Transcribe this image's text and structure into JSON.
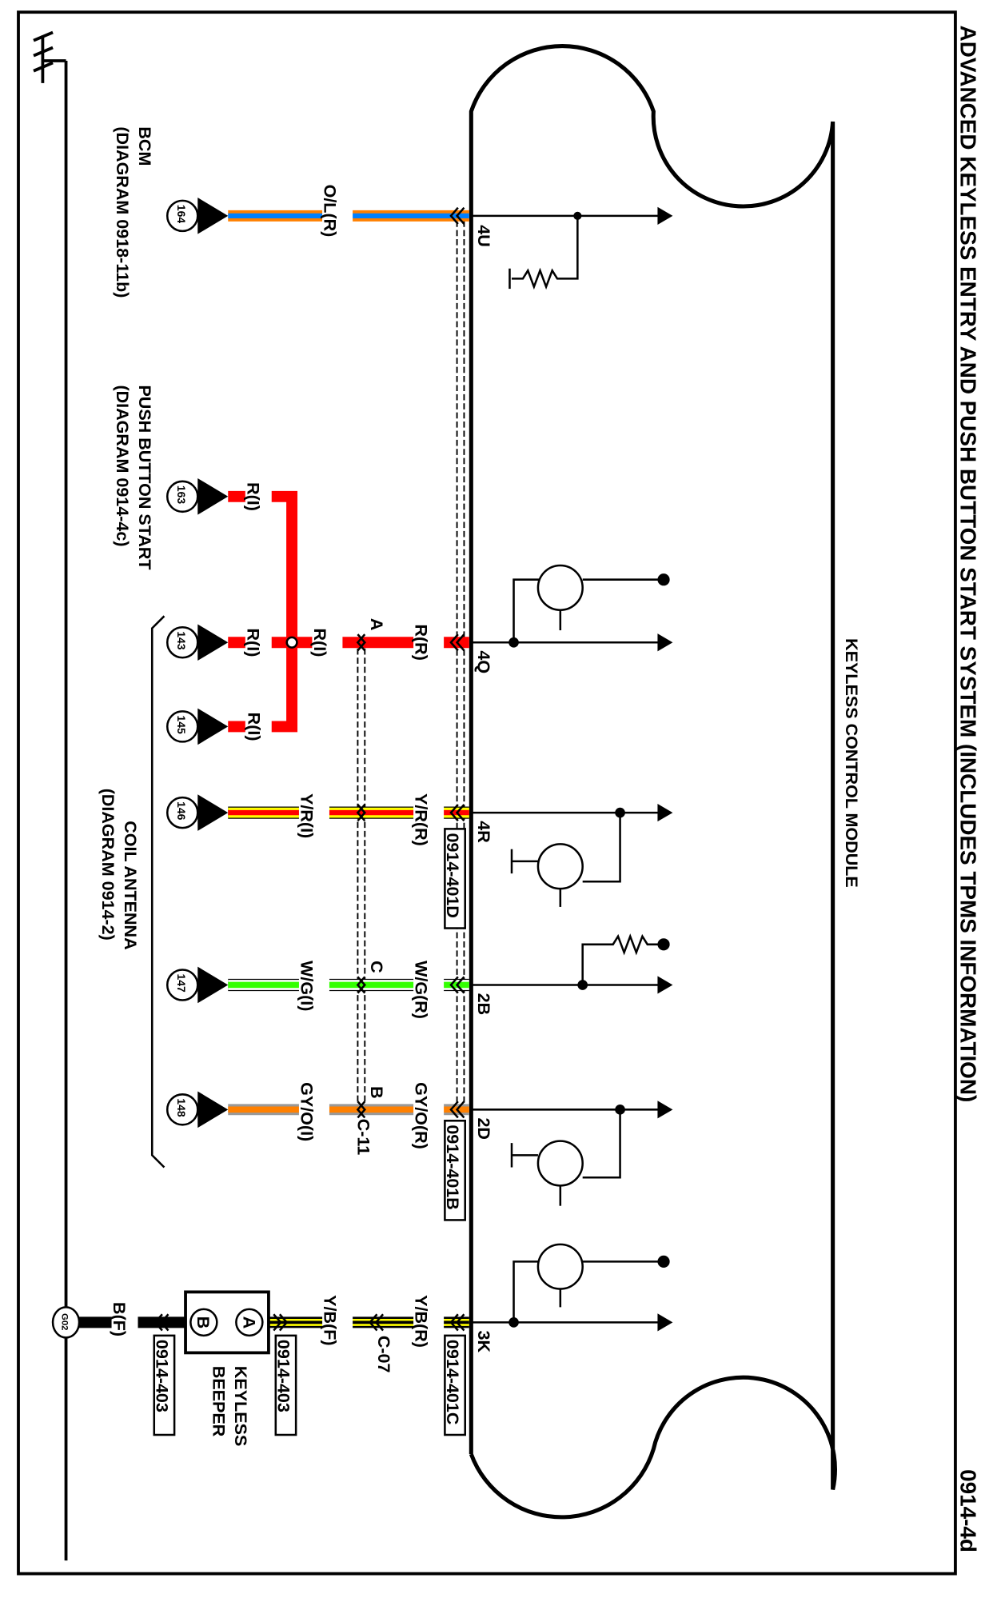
{
  "title": "ADVANCED KEYLESS ENTRY AND PUSH BUTTON START SYSTEM (INCLUDES TPMS INFORMATION)",
  "diagram_number": "0914-4d",
  "module": {
    "name": "KEYLESS CONTROL MODULE",
    "pins": [
      "4U",
      "4Q",
      "4R",
      "2B",
      "2D",
      "3K"
    ]
  },
  "components": {
    "bcm": {
      "name": "BCM",
      "ref": "(DIAGRAM 0918-11b)"
    },
    "push_button_start": {
      "name": "PUSH BUTTON START",
      "ref": "(DIAGRAM 0914-4c)"
    },
    "coil_antenna": {
      "name": "COIL ANTENNA",
      "ref": "(DIAGRAM 0914-2)"
    },
    "keyless_beeper": {
      "name_line1": "KEYLESS",
      "name_line2": "BEEPER",
      "pin_a": "A",
      "pin_b": "B"
    }
  },
  "terminals": [
    "164",
    "163",
    "143",
    "145",
    "146",
    "147",
    "148"
  ],
  "ground": "G02",
  "wires": {
    "w4u": {
      "label": "O/L(R)",
      "colors": [
        "#ff8000",
        "#0080ff"
      ]
    },
    "w163": {
      "label": "R(I)",
      "colors": [
        "#ff0000"
      ]
    },
    "w143": {
      "label_i": "R(I)",
      "label_mid": "R(I)",
      "label_r": "R(R)",
      "inline": "A",
      "colors": [
        "#ff0000"
      ]
    },
    "w145": {
      "label": "R(I)",
      "colors": [
        "#ff0000"
      ]
    },
    "w146": {
      "label_i": "Y/R(I)",
      "label_r": "Y/R(R)",
      "colors": [
        "#ffff00",
        "#ff0000"
      ]
    },
    "w147": {
      "label_i": "W/G(I)",
      "label_r": "W/G(R)",
      "inline": "C",
      "colors": [
        "#ffffff",
        "#33ff00"
      ]
    },
    "w148": {
      "label_i": "GY/O(I)",
      "label_r": "GY/O(R)",
      "inline": "B",
      "connector": "C-11",
      "colors": [
        "#999999",
        "#ff8000"
      ]
    },
    "w3k": {
      "label_r": "Y/B(R)",
      "label_f": "Y/B(F)",
      "connector": "C-07",
      "colors": [
        "#ffff00",
        "#000000"
      ]
    },
    "wbf": {
      "label": "B(F)",
      "colors": [
        "#000000"
      ]
    }
  },
  "connector_refs": {
    "c401d": "0914-401D",
    "c401b": "0914-401B",
    "c401c": "0914-401C",
    "c403a": "0914-403",
    "c403b": "0914-403"
  }
}
